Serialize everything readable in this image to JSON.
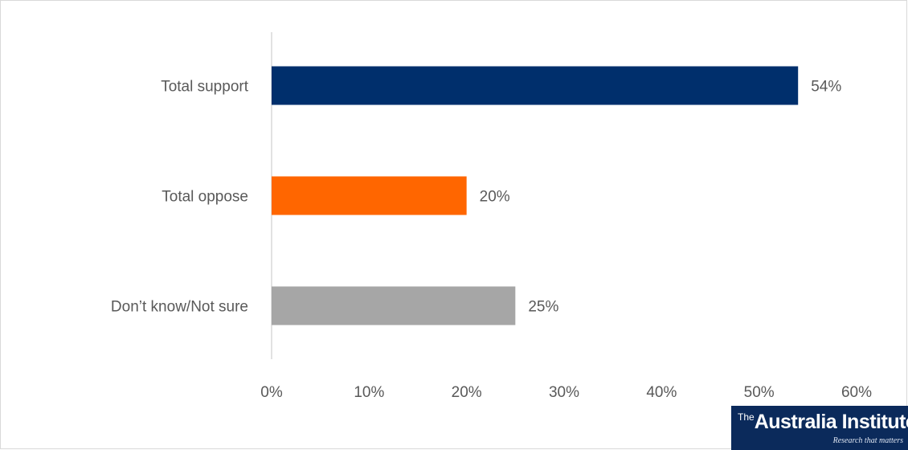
{
  "chart_data": {
    "type": "bar",
    "orientation": "horizontal",
    "categories": [
      "Total support",
      "Total oppose",
      "Don’t know/Not sure"
    ],
    "values": [
      54,
      20,
      25
    ],
    "value_labels": [
      "54%",
      "20%",
      "25%"
    ],
    "colors": [
      "#002f6c",
      "#ff6600",
      "#a6a6a6"
    ],
    "xlim": [
      0,
      60
    ],
    "xticks": [
      0,
      10,
      20,
      30,
      40,
      50,
      60
    ],
    "xtick_labels": [
      "0%",
      "10%",
      "20%",
      "30%",
      "40%",
      "50%",
      "60%"
    ],
    "grid": false,
    "legend": "none"
  },
  "logo": {
    "the": "The",
    "name": "Australia Institute",
    "tagline": "Research that matters",
    "background": "#0b2a5b"
  }
}
